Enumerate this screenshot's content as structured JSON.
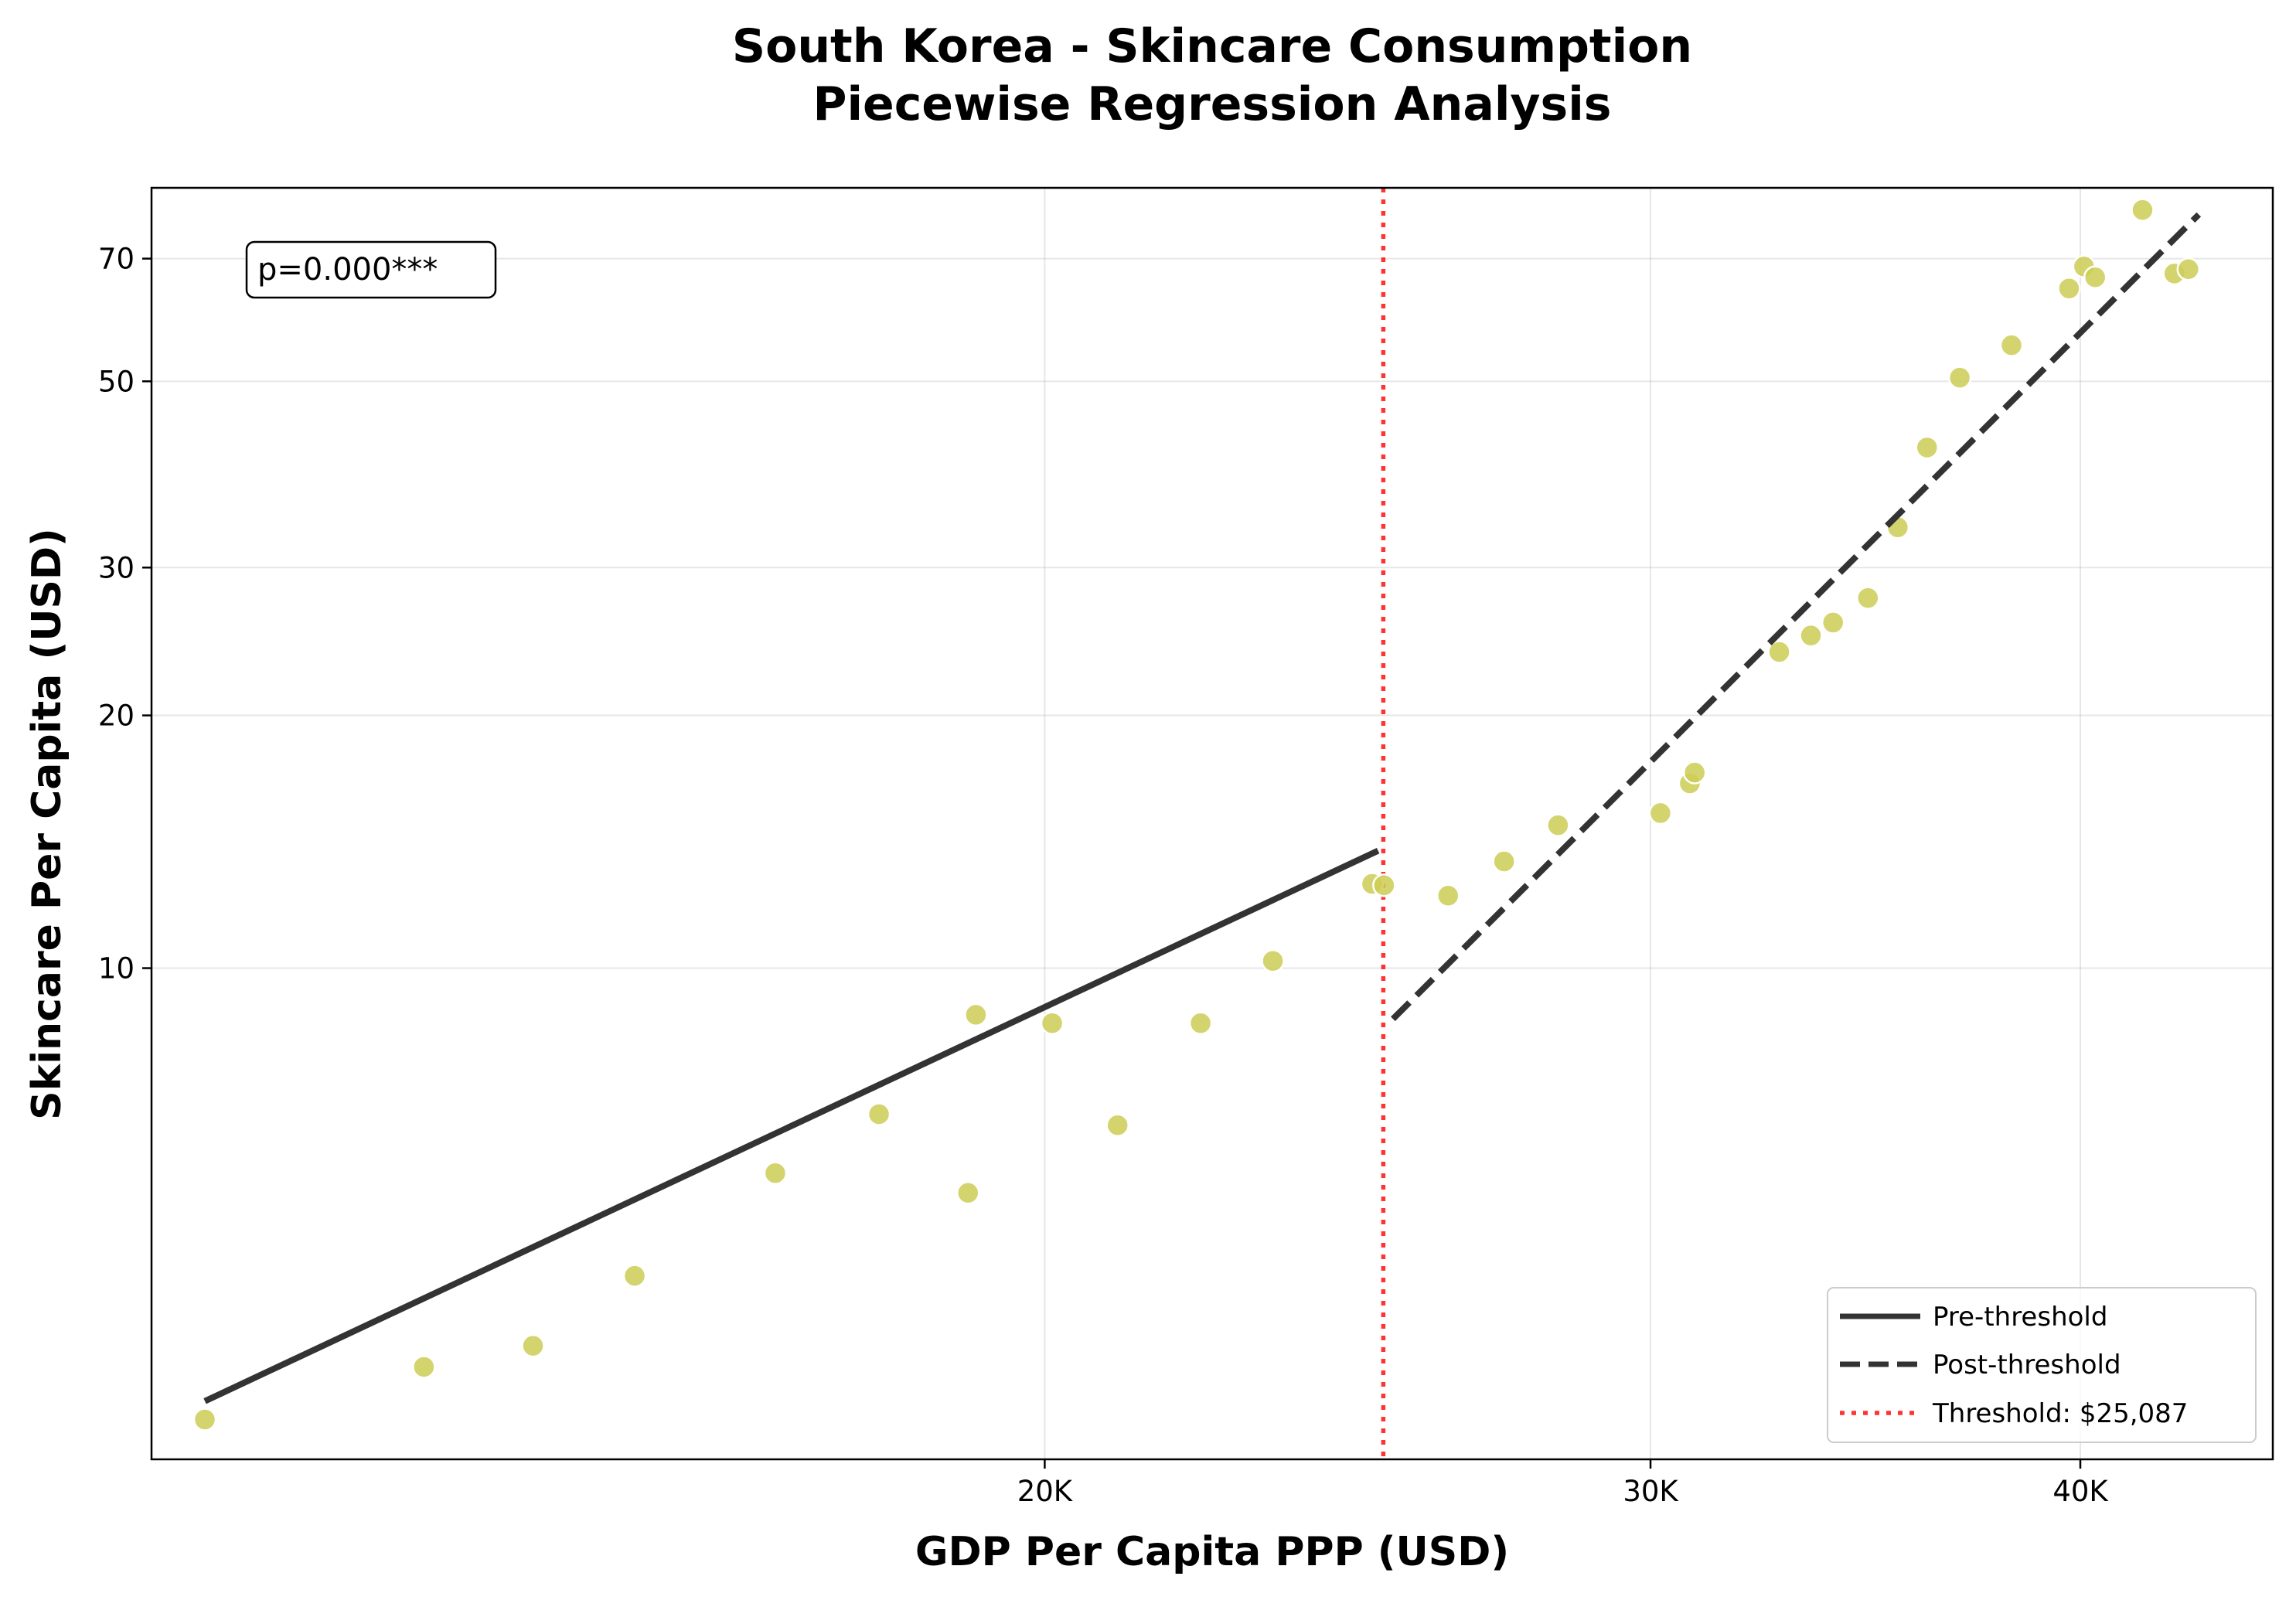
{
  "chart_data": {
    "type": "scatter",
    "title_line1": "South Korea - Skincare Consumption",
    "title_line2": "Piecewise Regression Analysis",
    "xlabel": "GDP Per Capita PPP (USD)",
    "ylabel": "Skincare Per Capita (USD)",
    "x_scale": "log",
    "y_scale": "log",
    "xlim": [
      11000,
      45500
    ],
    "ylim": [
      2.6,
      85
    ],
    "x_ticks": [
      {
        "value": 20000,
        "label": "20K"
      },
      {
        "value": 30000,
        "label": "30K"
      },
      {
        "value": 40000,
        "label": "40K"
      }
    ],
    "y_ticks": [
      {
        "value": 10,
        "label": "10"
      },
      {
        "value": 20,
        "label": "20"
      },
      {
        "value": 30,
        "label": "30"
      },
      {
        "value": 50,
        "label": "50"
      },
      {
        "value": 70,
        "label": "70"
      }
    ],
    "grid": true,
    "legend_position": "lower right",
    "annotation": "p=0.000***",
    "threshold": {
      "x": 25087,
      "label": "Threshold: $25,087",
      "color": "#ff0000"
    },
    "marker_color": "#cccc55",
    "line_color": "#333333",
    "series": [
      {
        "name": "Pre-threshold",
        "style": "solid",
        "points": [
          {
            "x": 11400,
            "y": 3.05
          },
          {
            "x": 25000,
            "y": 13.8
          }
        ]
      },
      {
        "name": "Post-threshold",
        "style": "dashed",
        "points": [
          {
            "x": 25250,
            "y": 8.7
          },
          {
            "x": 43300,
            "y": 79
          }
        ]
      }
    ],
    "scatter_points": [
      {
        "x": 11400,
        "y": 2.9
      },
      {
        "x": 13200,
        "y": 3.35
      },
      {
        "x": 14200,
        "y": 3.55
      },
      {
        "x": 15200,
        "y": 4.3
      },
      {
        "x": 16700,
        "y": 5.7
      },
      {
        "x": 17900,
        "y": 6.7
      },
      {
        "x": 19000,
        "y": 5.4
      },
      {
        "x": 19100,
        "y": 8.8
      },
      {
        "x": 20100,
        "y": 8.6
      },
      {
        "x": 21000,
        "y": 6.5
      },
      {
        "x": 22200,
        "y": 8.6
      },
      {
        "x": 23300,
        "y": 10.2
      },
      {
        "x": 24900,
        "y": 12.6
      },
      {
        "x": 25100,
        "y": 12.55
      },
      {
        "x": 26200,
        "y": 12.2
      },
      {
        "x": 27200,
        "y": 13.4
      },
      {
        "x": 28200,
        "y": 14.8
      },
      {
        "x": 30200,
        "y": 15.3
      },
      {
        "x": 30800,
        "y": 16.6
      },
      {
        "x": 30900,
        "y": 17.1
      },
      {
        "x": 32700,
        "y": 23.8
      },
      {
        "x": 33400,
        "y": 24.9
      },
      {
        "x": 33900,
        "y": 25.8
      },
      {
        "x": 34700,
        "y": 27.6
      },
      {
        "x": 35400,
        "y": 33.5
      },
      {
        "x": 36100,
        "y": 41.7
      },
      {
        "x": 36900,
        "y": 50.5
      },
      {
        "x": 38200,
        "y": 55.2
      },
      {
        "x": 39700,
        "y": 64.5
      },
      {
        "x": 40100,
        "y": 68.5
      },
      {
        "x": 40400,
        "y": 66.5
      },
      {
        "x": 41700,
        "y": 80
      },
      {
        "x": 42600,
        "y": 67.2
      },
      {
        "x": 43000,
        "y": 68
      }
    ]
  }
}
